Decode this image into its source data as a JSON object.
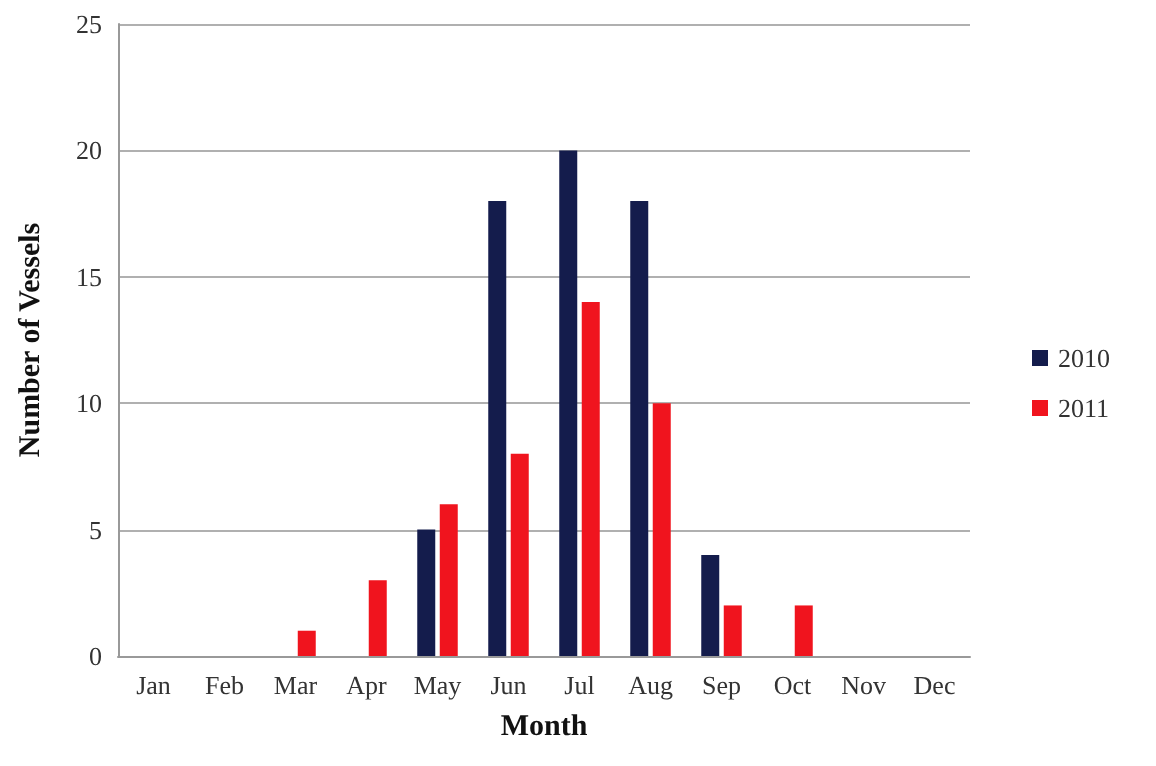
{
  "chart_data": {
    "type": "bar",
    "xlabel": "Month",
    "ylabel": "Number of Vessels",
    "categories": [
      "Jan",
      "Feb",
      "Mar",
      "Apr",
      "May",
      "Jun",
      "Jul",
      "Aug",
      "Sep",
      "Oct",
      "Nov",
      "Dec"
    ],
    "series": [
      {
        "name": "2010",
        "color": "#141c4c",
        "values": [
          0,
          0,
          0,
          0,
          5,
          18,
          20,
          18,
          4,
          0,
          0,
          0
        ]
      },
      {
        "name": "2011",
        "color": "#f0141e",
        "values": [
          0,
          0,
          1,
          3,
          6,
          8,
          14,
          10,
          2,
          2,
          0,
          0
        ]
      }
    ],
    "ylim": [
      0,
      25
    ],
    "yticks": [
      0,
      5,
      10,
      15,
      20,
      25
    ],
    "grid": "y",
    "legend": "right"
  }
}
